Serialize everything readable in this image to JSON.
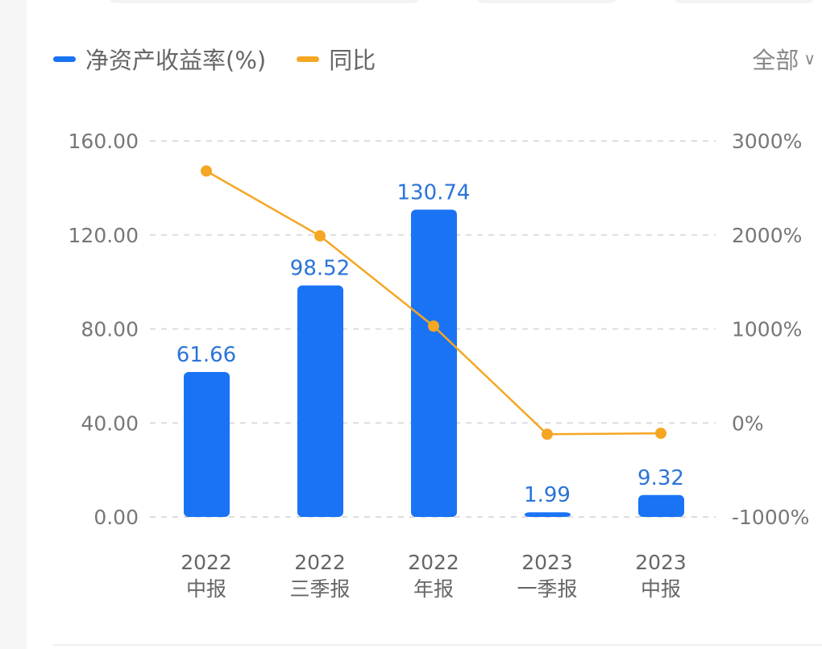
{
  "legend": [
    {
      "label": "净资产收益率(%)",
      "color": "#1a73f5"
    },
    {
      "label": "同比",
      "color": "#f5a623"
    }
  ],
  "filter": {
    "label": "全部",
    "icon": "chevron-down-icon"
  },
  "chart_data": {
    "type": "bar+line",
    "categories": [
      [
        "2022",
        "中报"
      ],
      [
        "2022",
        "三季报"
      ],
      [
        "2022",
        "年报"
      ],
      [
        "2023",
        "一季报"
      ],
      [
        "2023",
        "中报"
      ]
    ],
    "series": [
      {
        "name": "净资产收益率(%)",
        "type": "bar",
        "axis": "left",
        "color": "#1a73f5",
        "values": [
          61.66,
          98.52,
          130.74,
          1.99,
          9.32
        ],
        "labels": [
          "61.66",
          "98.52",
          "130.74",
          "1.99",
          "9.32"
        ]
      },
      {
        "name": "同比",
        "type": "line",
        "axis": "right",
        "color": "#f5a623",
        "values": [
          2680,
          1990,
          1030,
          -120,
          -110
        ]
      }
    ],
    "left_axis": {
      "ylim": [
        0,
        160
      ],
      "ticks": [
        "0.00",
        "40.00",
        "80.00",
        "120.00",
        "160.00"
      ]
    },
    "right_axis": {
      "ylim": [
        -1000,
        3000
      ],
      "ticks": [
        "-1000%",
        "0%",
        "1000%",
        "2000%",
        "3000%"
      ]
    },
    "grid": true,
    "legend_position": "top-left"
  }
}
